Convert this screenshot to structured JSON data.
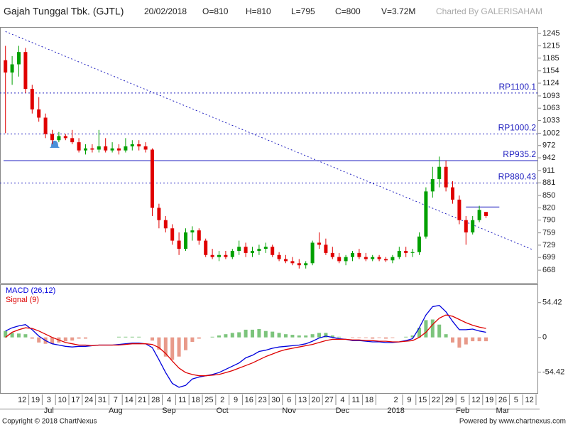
{
  "header": {
    "title": "Gajah Tunggal Tbk. (GJTL)",
    "date": "20/02/2018",
    "open": "O=810",
    "high": "H=810",
    "low": "L=795",
    "close": "C=800",
    "volume": "V=3.72M",
    "credit": "Charted By GALERISAHAM"
  },
  "footer": {
    "copyright": "Copyright © 2018 ChartNexus",
    "powered": "Powered by www.chartnexus.com"
  },
  "chart_data": [
    {
      "type": "candlestick",
      "categories": [
        null,
        null,
        "12",
        null,
        "19",
        null,
        "3",
        null,
        "10",
        null,
        "17",
        null,
        "24",
        null,
        "31",
        null,
        "7",
        null,
        "14",
        null,
        "21",
        null,
        "28",
        null,
        "4",
        null,
        "11",
        null,
        "18",
        null,
        "25",
        null,
        "2",
        null,
        "9",
        null,
        "16",
        null,
        "23",
        null,
        "30",
        null,
        "6",
        null,
        "13",
        null,
        "20",
        null,
        "27",
        null,
        "4",
        null,
        "11",
        null,
        "18",
        null,
        null,
        null,
        "2",
        null,
        "9",
        null,
        "15",
        null,
        "22",
        null,
        "29",
        null,
        "5",
        null,
        "12",
        null,
        "19",
        null,
        "26",
        null,
        "5",
        null,
        "12",
        null
      ],
      "periods": [
        null,
        null,
        null,
        null,
        null,
        null,
        "Jul",
        null,
        null,
        null,
        null,
        null,
        null,
        null,
        null,
        null,
        "Aug",
        null,
        null,
        null,
        null,
        null,
        null,
        null,
        "Sep",
        null,
        null,
        null,
        null,
        null,
        null,
        null,
        "Oct",
        null,
        null,
        null,
        null,
        null,
        null,
        null,
        null,
        null,
        "Nov",
        null,
        null,
        null,
        null,
        null,
        null,
        null,
        "Dec",
        null,
        null,
        null,
        null,
        null,
        null,
        null,
        "2018",
        null,
        null,
        null,
        null,
        null,
        null,
        null,
        null,
        null,
        "Feb",
        null,
        null,
        null,
        null,
        null,
        "Mar",
        null,
        null,
        null
      ],
      "open": [
        1180,
        1150,
        1170,
        1200,
        1110,
        1060,
        1040,
        1000,
        985,
        995,
        990,
        980,
        960,
        965,
        962,
        970,
        960,
        965,
        960,
        970,
        975,
        970,
        962,
        820,
        790,
        770,
        740,
        720,
        760,
        765,
        740,
        705,
        700,
        705,
        700,
        715,
        725,
        710,
        715,
        720,
        725,
        705,
        695,
        690,
        685,
        680,
        685,
        735,
        730,
        710,
        700,
        690,
        700,
        710,
        700,
        695,
        700,
        695,
        692,
        700,
        715,
        710,
        712,
        750,
        860,
        890,
        920,
        870,
        840,
        790,
        760,
        790,
        810,
        null,
        null,
        null,
        null,
        null,
        null,
        null
      ],
      "high": [
        1215,
        1190,
        1215,
        1210,
        1120,
        1090,
        1050,
        1010,
        1005,
        1000,
        1010,
        990,
        975,
        975,
        1010,
        990,
        980,
        975,
        990,
        985,
        985,
        980,
        965,
        830,
        800,
        780,
        760,
        770,
        775,
        770,
        745,
        720,
        715,
        715,
        720,
        740,
        735,
        725,
        730,
        735,
        730,
        712,
        705,
        700,
        695,
        690,
        740,
        760,
        745,
        725,
        710,
        705,
        715,
        720,
        710,
        705,
        705,
        700,
        705,
        725,
        725,
        720,
        760,
        870,
        920,
        945,
        935,
        885,
        850,
        800,
        800,
        825,
        810,
        null,
        null,
        null,
        null,
        null,
        null,
        null
      ],
      "low": [
        1002,
        1120,
        1140,
        1100,
        1050,
        1030,
        990,
        975,
        980,
        985,
        975,
        955,
        950,
        955,
        955,
        955,
        955,
        950,
        955,
        960,
        960,
        955,
        800,
        770,
        760,
        730,
        705,
        715,
        740,
        730,
        700,
        695,
        690,
        695,
        695,
        705,
        700,
        700,
        705,
        710,
        700,
        690,
        685,
        680,
        672,
        672,
        680,
        720,
        705,
        695,
        685,
        680,
        690,
        695,
        690,
        690,
        690,
        688,
        685,
        695,
        700,
        700,
        705,
        745,
        845,
        870,
        860,
        830,
        780,
        730,
        755,
        785,
        795,
        null,
        null,
        null,
        null,
        null,
        null,
        null
      ],
      "close": [
        1150,
        1170,
        1200,
        1110,
        1060,
        1040,
        1000,
        985,
        995,
        990,
        980,
        960,
        965,
        962,
        970,
        960,
        965,
        960,
        970,
        975,
        970,
        962,
        820,
        790,
        770,
        740,
        720,
        760,
        765,
        740,
        705,
        700,
        705,
        700,
        715,
        725,
        710,
        715,
        720,
        725,
        705,
        695,
        690,
        685,
        680,
        685,
        735,
        730,
        710,
        700,
        690,
        700,
        710,
        700,
        695,
        700,
        695,
        692,
        700,
        715,
        710,
        712,
        750,
        860,
        890,
        920,
        870,
        840,
        790,
        760,
        790,
        815,
        800,
        null,
        null,
        null,
        null,
        null,
        null,
        null
      ],
      "up_color": "#00a000",
      "down_color": "#e00000",
      "ylim": [
        637,
        1261
      ],
      "yticks": [
        1245,
        1215,
        1185,
        1154,
        1124,
        1093,
        1063,
        1033,
        1002,
        972,
        942,
        911,
        881,
        850,
        820,
        790,
        759,
        729,
        699,
        668
      ],
      "levels": [
        {
          "label": "RP1100.1",
          "value": 1100.1,
          "style": "dotted"
        },
        {
          "label": "RP1000.2",
          "value": 1000.2,
          "style": "dotted"
        },
        {
          "label": "RP935.2",
          "value": 935.2,
          "style": "solid"
        },
        {
          "label": "RP880.43",
          "value": 880.43,
          "style": "dotted"
        }
      ],
      "trendlines": [
        {
          "x": [
            0,
            79
          ],
          "y": [
            1250,
            718
          ],
          "style": "dotted"
        },
        {
          "x": [
            69,
            74
          ],
          "y": [
            822,
            822
          ],
          "style": "solid"
        }
      ],
      "line_color": "#2020c0"
    },
    {
      "type": "macd",
      "series": [
        {
          "name": "MACD (26,12)",
          "color": "#0000dd",
          "values": [
            10,
            15,
            18,
            20,
            12,
            2,
            -5,
            -10,
            -12,
            -14,
            -15,
            -14,
            -14,
            -13,
            -12,
            -12,
            -12,
            -11,
            -10,
            -9,
            -9,
            -10,
            -16,
            -35,
            -55,
            -72,
            -78,
            -75,
            -65,
            -62,
            -60,
            -58,
            -55,
            -50,
            -45,
            -40,
            -32,
            -28,
            -22,
            -20,
            -17,
            -15,
            -14,
            -13,
            -12,
            -10,
            -6,
            -1,
            2,
            0,
            -2,
            -3,
            -5,
            -5,
            -6,
            -7,
            -7,
            -8,
            -8,
            -7,
            -5,
            -2,
            15,
            35,
            48,
            50,
            40,
            25,
            12,
            12,
            13,
            10,
            8,
            null,
            null,
            null,
            null,
            null,
            null,
            null
          ]
        },
        {
          "name": "Signal (9)",
          "color": "#dd0000",
          "values": [
            0,
            8,
            12,
            15,
            14,
            10,
            5,
            0,
            -4,
            -8,
            -10,
            -12,
            -12,
            -13,
            -12,
            -12,
            -12,
            -12,
            -11,
            -10,
            -10,
            -10,
            -11,
            -16,
            -25,
            -37,
            -48,
            -55,
            -58,
            -60,
            -60,
            -59,
            -58,
            -55,
            -52,
            -48,
            -44,
            -40,
            -35,
            -30,
            -26,
            -22,
            -19,
            -17,
            -15,
            -13,
            -11,
            -8,
            -5,
            -3,
            -3,
            -3,
            -4,
            -4,
            -5,
            -5,
            -6,
            -6,
            -7,
            -7,
            -6,
            -5,
            0,
            8,
            20,
            30,
            35,
            33,
            28,
            23,
            19,
            16,
            14,
            null,
            null,
            null,
            null,
            null,
            null,
            null
          ]
        }
      ],
      "histogram": {
        "values": [
          10,
          7,
          6,
          5,
          -2,
          -8,
          -10,
          -10,
          -8,
          -6,
          -5,
          -2,
          -2,
          0,
          0,
          0,
          0,
          1,
          1,
          1,
          1,
          0,
          -5,
          -19,
          -30,
          -35,
          -30,
          -20,
          -7,
          -2,
          0,
          1,
          3,
          5,
          7,
          8,
          12,
          12,
          13,
          10,
          9,
          7,
          5,
          4,
          3,
          3,
          5,
          7,
          7,
          3,
          1,
          0,
          -1,
          -1,
          -1,
          -2,
          -1,
          -2,
          -1,
          0,
          1,
          3,
          15,
          27,
          28,
          20,
          5,
          -8,
          -16,
          -11,
          -6,
          -6,
          -6,
          null,
          null,
          null,
          null,
          null,
          null,
          null
        ],
        "up_color": "#7cc47c",
        "down_color": "#e89a8a"
      },
      "ylim": [
        -87,
        83
      ],
      "yticks": [
        54.42,
        0,
        -54.42
      ]
    }
  ]
}
